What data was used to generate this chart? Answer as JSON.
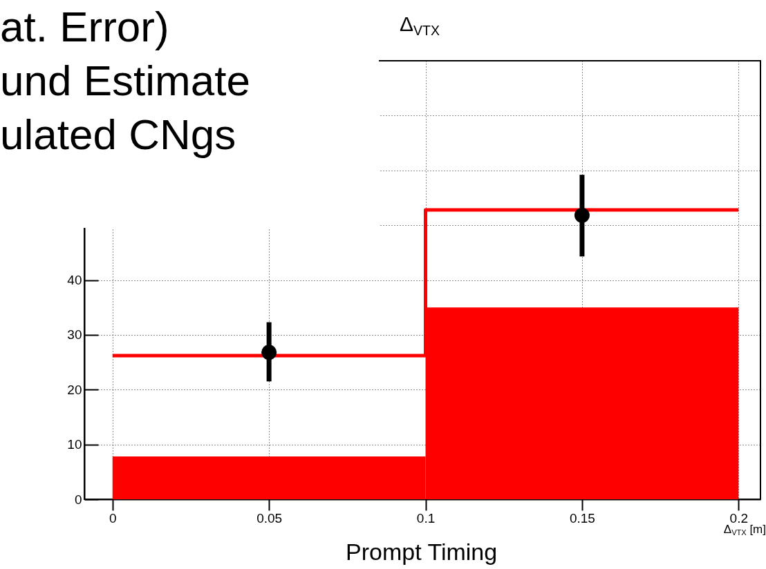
{
  "chart_data": {
    "type": "histogram",
    "title": "Δ$_{VTX}$",
    "xlabel": "Δ$_{VTX}$ [m]",
    "annotations": [
      "at. Error)",
      "und Estimate",
      "ulated CNgs",
      "Prompt Timing"
    ],
    "bins": [
      0,
      0.1,
      0.2
    ],
    "series": [
      {
        "color": "#ff0000",
        "values": [
          7.8,
          35
        ]
      },
      {
        "type": "step",
        "color": "#ff0000",
        "x": [
          0,
          0.1,
          0.2
        ],
        "values": [
          26.2,
          52.8,
          52.8
        ]
      },
      {
        "type": "scatter",
        "marker": "circle",
        "color": "#000000",
        "x": [
          0.05,
          0.15
        ],
        "values": [
          26.8,
          51.8
        ],
        "errors": [
          [
            21.5,
            32.3
          ],
          [
            44.3,
            59.2
          ]
        ]
      }
    ],
    "xlim": [
      -0.009,
      0.207
    ],
    "xticks": [
      0,
      0.05,
      0.1,
      0.15,
      0.2
    ],
    "ylim": [
      0,
      80
    ],
    "yticks": [
      0,
      10,
      20,
      30,
      40,
      {
        "value": 50,
        "label": null
      },
      {
        "value": 60,
        "label": null
      },
      {
        "value": 70,
        "label": null
      }
    ],
    "grid": true
  }
}
